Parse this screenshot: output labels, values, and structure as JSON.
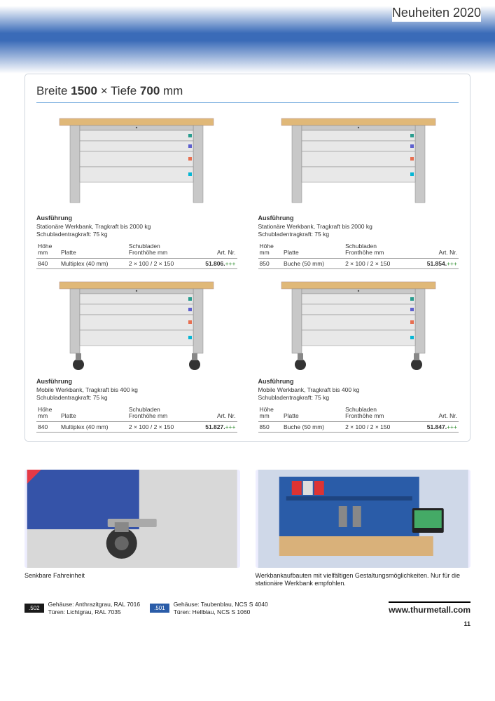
{
  "header": {
    "title": "Neuheiten 2020"
  },
  "dimensions": {
    "prefix": "Breite ",
    "width": "1500",
    "mid": " × Tiefe ",
    "depth": "700",
    "unit": " mm"
  },
  "workbench_svg": {
    "top_color": "#e0b878",
    "frame_color": "#c8c8c8",
    "frame_stroke": "#888",
    "drawer_fill": "#e8e8e8",
    "drawer_accents": [
      "#2a9d8f",
      "#5e60ce",
      "#e76f51",
      "#06b6d4"
    ],
    "wheel_color": "#333"
  },
  "products": [
    {
      "mobile": false,
      "spec_title": "Ausführung",
      "spec_l1": "Stationäre Werkbank, Tragkraft bis 2000 kg",
      "spec_l2": "Schubladentragkraft: 75 kg",
      "cols": {
        "h1": "Höhe",
        "h1b": "mm",
        "h2": "Platte",
        "h3": "Schubladen",
        "h3b": "Fronthöhe mm",
        "h4": "Art. Nr."
      },
      "row": {
        "hoehe": "840",
        "platte": "Multiplex (40 mm)",
        "schub": "2 × 100 / 2 × 150",
        "art": "51.806.",
        "suffix": "+++"
      }
    },
    {
      "mobile": false,
      "spec_title": "Ausführung",
      "spec_l1": "Stationäre Werkbank, Tragkraft bis 2000 kg",
      "spec_l2": "Schubladentragkraft: 75 kg",
      "cols": {
        "h1": "Höhe",
        "h1b": "mm",
        "h2": "Platte",
        "h3": "Schubladen",
        "h3b": "Fronthöhe mm",
        "h4": "Art. Nr."
      },
      "row": {
        "hoehe": "850",
        "platte": "Buche (50 mm)",
        "schub": "2 × 100 / 2 × 150",
        "art": "51.854.",
        "suffix": "+++"
      }
    },
    {
      "mobile": true,
      "spec_title": "Ausführung",
      "spec_l1": "Mobile Werkbank, Tragkraft bis 400 kg",
      "spec_l2": "Schubladentragkraft: 75 kg",
      "cols": {
        "h1": "Höhe",
        "h1b": "mm",
        "h2": "Platte",
        "h3": "Schubladen",
        "h3b": "Fronthöhe mm",
        "h4": "Art. Nr."
      },
      "row": {
        "hoehe": "840",
        "platte": "Multiplex (40 mm)",
        "schub": "2 × 100 / 2 × 150",
        "art": "51.827.",
        "suffix": "+++"
      }
    },
    {
      "mobile": true,
      "spec_title": "Ausführung",
      "spec_l1": "Mobile Werkbank, Tragkraft bis 400 kg",
      "spec_l2": "Schubladentragkraft: 75 kg",
      "cols": {
        "h1": "Höhe",
        "h1b": "mm",
        "h2": "Platte",
        "h3": "Schubladen",
        "h3b": "Fronthöhe mm",
        "h4": "Art. Nr."
      },
      "row": {
        "hoehe": "850",
        "platte": "Buche (50 mm)",
        "schub": "2 × 100 / 2 × 150",
        "art": "51.847.",
        "suffix": "+++"
      }
    }
  ],
  "photos": [
    {
      "caption": "Senkbare Fahreinheit",
      "bg": "#3553a8"
    },
    {
      "caption": "Werkbankaufbauten mit vielfältigen Gestaltungsmöglichkeiten. Nur für die stationäre Werkbank empfohlen.",
      "bg": "#cfd8e8"
    }
  ],
  "footer": {
    "badges": [
      {
        "code": ".502",
        "style": "dark",
        "l1": "Gehäuse:  Anthrazitgrau, RAL 7016",
        "l2": "Türen:      Lichtgrau, RAL 7035"
      },
      {
        "code": ".501",
        "style": "blue",
        "l1": "Gehäuse:  Taubenblau, NCS S 4040",
        "l2": "Türen:      Hellblau, NCS S 1060"
      }
    ],
    "url": "www.thurmetall.com",
    "page": "11"
  }
}
